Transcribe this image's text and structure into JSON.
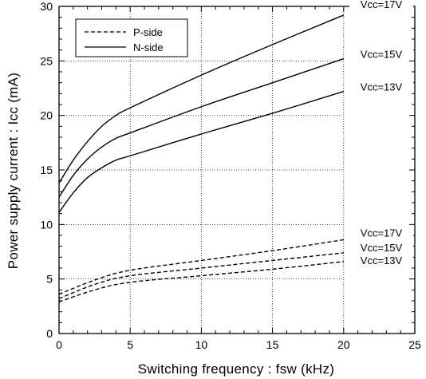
{
  "chart_data": {
    "type": "line",
    "xlabel": "Switching frequency : fsw (kHz)",
    "ylabel": "Power supply current : Icc (mA)",
    "xlim": [
      0,
      25
    ],
    "ylim": [
      0,
      30
    ],
    "x_ticks": [
      "0",
      "5",
      "10",
      "15",
      "20",
      "25"
    ],
    "y_ticks": [
      "0",
      "5",
      "10",
      "15",
      "20",
      "25",
      "30"
    ],
    "grid": "dotted, at labeled series curves",
    "legend_position": "top-left",
    "legend": [
      {
        "name": "P-side",
        "style": "dashed"
      },
      {
        "name": "N-side",
        "style": "solid"
      }
    ],
    "series": [
      {
        "group": "N-side",
        "label": "Vcc=17V",
        "style": "solid",
        "x": [
          0,
          1,
          2,
          3,
          4,
          5,
          10,
          15,
          20
        ],
        "y": [
          13.8,
          15.9,
          17.6,
          19.0,
          20.0,
          20.7,
          23.7,
          26.5,
          29.2
        ]
      },
      {
        "group": "N-side",
        "label": "Vcc=15V",
        "style": "solid",
        "x": [
          0,
          1,
          2,
          3,
          4,
          5,
          10,
          15,
          20
        ],
        "y": [
          12.5,
          14.5,
          16.0,
          17.1,
          17.9,
          18.4,
          20.8,
          23.0,
          25.2
        ]
      },
      {
        "group": "N-side",
        "label": "Vcc=13V",
        "style": "solid",
        "x": [
          0,
          1,
          2,
          3,
          4,
          5,
          10,
          15,
          20
        ],
        "y": [
          11.1,
          12.9,
          14.3,
          15.2,
          15.9,
          16.3,
          18.3,
          20.2,
          22.2
        ]
      },
      {
        "group": "P-side",
        "label": "Vcc=17V",
        "style": "dashed",
        "x": [
          0,
          2.5,
          5,
          10,
          15,
          20
        ],
        "y": [
          3.6,
          4.9,
          5.8,
          6.7,
          7.6,
          8.6
        ]
      },
      {
        "group": "P-side",
        "label": "Vcc=15V",
        "style": "dashed",
        "x": [
          0,
          2.5,
          5,
          10,
          15,
          20
        ],
        "y": [
          3.2,
          4.5,
          5.3,
          6.0,
          6.7,
          7.4
        ]
      },
      {
        "group": "P-side",
        "label": "Vcc=13V",
        "style": "dashed",
        "x": [
          0,
          2.5,
          5,
          10,
          15,
          20
        ],
        "y": [
          2.9,
          4.0,
          4.7,
          5.3,
          5.9,
          6.6
        ]
      }
    ]
  }
}
